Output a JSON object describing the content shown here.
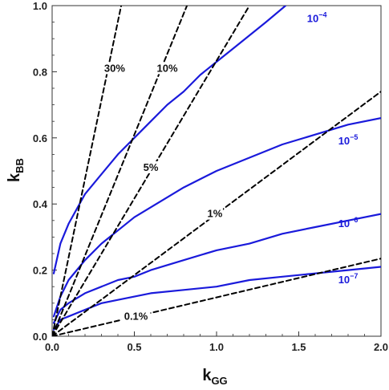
{
  "chart_data": {
    "type": "line",
    "title": "",
    "xlabel": {
      "main": "k",
      "sub": "GG"
    },
    "ylabel": {
      "main": "k",
      "sub": "BB"
    },
    "xlim": [
      0,
      2
    ],
    "ylim": [
      0,
      1
    ],
    "xticks": [
      "0.0",
      "0.5",
      "1.0",
      "1.5",
      "2.0"
    ],
    "yticks": [
      "0.0",
      "0.2",
      "0.4",
      "0.6",
      "0.8",
      "1.0"
    ],
    "grid": false,
    "series": [
      {
        "name": "10",
        "exp": "−4",
        "color": "#1a1adb",
        "style": "solid",
        "x": [
          0.01,
          0.05,
          0.1,
          0.2,
          0.3,
          0.4,
          0.5,
          0.6,
          0.7,
          0.8,
          0.9,
          1.0,
          1.1,
          1.2,
          1.3,
          1.42
        ],
        "y": [
          0.19,
          0.28,
          0.34,
          0.43,
          0.49,
          0.55,
          0.6,
          0.65,
          0.7,
          0.74,
          0.79,
          0.83,
          0.87,
          0.91,
          0.95,
          1.0
        ]
      },
      {
        "name": "10",
        "exp": "−5",
        "color": "#1a1adb",
        "style": "solid",
        "x": [
          0.01,
          0.05,
          0.1,
          0.2,
          0.3,
          0.4,
          0.5,
          0.6,
          0.8,
          1.0,
          1.2,
          1.4,
          1.6,
          1.8,
          2.0
        ],
        "y": [
          0.06,
          0.12,
          0.17,
          0.23,
          0.28,
          0.32,
          0.36,
          0.39,
          0.45,
          0.5,
          0.54,
          0.58,
          0.61,
          0.64,
          0.66
        ]
      },
      {
        "name": "10",
        "exp": "−6",
        "color": "#1a1adb",
        "style": "solid",
        "x": [
          0.01,
          0.05,
          0.1,
          0.2,
          0.3,
          0.4,
          0.5,
          0.6,
          0.8,
          1.0,
          1.2,
          1.4,
          1.6,
          1.8,
          2.0
        ],
        "y": [
          0.04,
          0.08,
          0.1,
          0.13,
          0.15,
          0.17,
          0.18,
          0.2,
          0.23,
          0.26,
          0.28,
          0.31,
          0.33,
          0.35,
          0.37
        ]
      },
      {
        "name": "10",
        "exp": "−7",
        "color": "#1a1adb",
        "style": "solid",
        "x": [
          0.01,
          0.05,
          0.1,
          0.2,
          0.3,
          0.4,
          0.5,
          0.6,
          0.8,
          1.0,
          1.2,
          1.4,
          1.6,
          1.8,
          2.0
        ],
        "y": [
          0.02,
          0.05,
          0.06,
          0.08,
          0.1,
          0.11,
          0.12,
          0.13,
          0.14,
          0.15,
          0.17,
          0.18,
          0.19,
          0.2,
          0.21
        ]
      },
      {
        "name": "30%",
        "color": "#000000",
        "style": "dashed",
        "x": [
          0.0,
          0.42
        ],
        "y": [
          0.0,
          1.0
        ]
      },
      {
        "name": "10%",
        "color": "#000000",
        "style": "dashed",
        "x": [
          0.0,
          0.82
        ],
        "y": [
          0.0,
          1.0
        ]
      },
      {
        "name": "5%",
        "color": "#000000",
        "style": "dashed",
        "x": [
          0.0,
          1.2
        ],
        "y": [
          0.0,
          1.0
        ]
      },
      {
        "name": "1%",
        "color": "#000000",
        "style": "dashed",
        "x": [
          0.0,
          2.0
        ],
        "y": [
          0.0,
          0.74
        ]
      },
      {
        "name": "0.1%",
        "color": "#000000",
        "style": "dashed",
        "x": [
          0.0,
          2.0
        ],
        "y": [
          0.0,
          0.235
        ]
      }
    ],
    "annotations": [
      {
        "text": "30%",
        "x": 0.38,
        "y": 0.8
      },
      {
        "text": "10%",
        "x": 0.7,
        "y": 0.8
      },
      {
        "text": "5%",
        "x": 0.6,
        "y": 0.5
      },
      {
        "text": "1%",
        "x": 0.99,
        "y": 0.36
      },
      {
        "text": "0.1%",
        "x": 0.51,
        "y": 0.05
      }
    ]
  }
}
